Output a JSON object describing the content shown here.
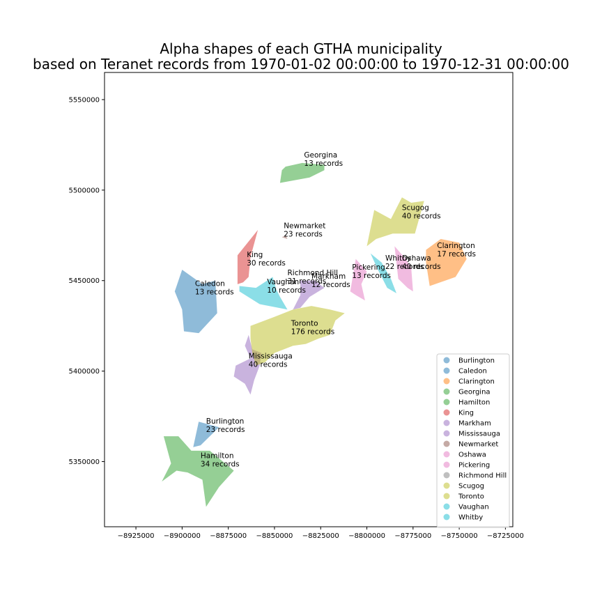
{
  "title_line1": "Alpha shapes of each GTHA municipality",
  "title_line2": "based on Teranet records from 1970-01-02 00:00:00 to 1970-12-31 00:00:00",
  "chart_data": {
    "type": "map",
    "xlim": [
      -8942000,
      -8721000
    ],
    "ylim": [
      5314000,
      5565000
    ],
    "x_ticks": [
      {
        "value": -8925000,
        "label": "−8925000"
      },
      {
        "value": -8900000,
        "label": "−8900000"
      },
      {
        "value": -8875000,
        "label": "−8875000"
      },
      {
        "value": -8850000,
        "label": "−8850000"
      },
      {
        "value": -8825000,
        "label": "−8825000"
      },
      {
        "value": -8800000,
        "label": "−8800000"
      },
      {
        "value": -8775000,
        "label": "−8775000"
      },
      {
        "value": -8750000,
        "label": "−8750000"
      },
      {
        "value": -8725000,
        "label": "−8725000"
      }
    ],
    "y_ticks": [
      {
        "value": 5350000,
        "label": "5350000"
      },
      {
        "value": 5400000,
        "label": "5400000"
      },
      {
        "value": 5450000,
        "label": "5450000"
      },
      {
        "value": 5500000,
        "label": "5500000"
      },
      {
        "value": 5550000,
        "label": "5550000"
      }
    ],
    "legend_position": "lower-right",
    "municipalities": [
      {
        "name": "Burlington",
        "color": "#1f77b4",
        "label_lines": [
          "Burlington",
          "23 records"
        ],
        "label_at": [
          -8887000,
          5371000
        ],
        "polygon": [
          [
            -8891000,
            5372000
          ],
          [
            -8880000,
            5369000
          ],
          [
            -8890000,
            5359000
          ],
          [
            -8894000,
            5358000
          ]
        ]
      },
      {
        "name": "Caledon",
        "color": "#1f77b4",
        "label_lines": [
          "Caledon",
          "13 records"
        ],
        "label_at": [
          -8893000,
          5447000
        ],
        "polygon": [
          [
            -8900000,
            5456000
          ],
          [
            -8889000,
            5448000
          ],
          [
            -8882000,
            5450000
          ],
          [
            -8881000,
            5432000
          ],
          [
            -8891000,
            5421000
          ],
          [
            -8899000,
            5422000
          ],
          [
            -8900000,
            5434000
          ],
          [
            -8904000,
            5444000
          ]
        ]
      },
      {
        "name": "Clarington",
        "color": "#ff7f0e",
        "label_lines": [
          "Clarington",
          "17 records"
        ],
        "label_at": [
          -8762000,
          5468000
        ],
        "polygon": [
          [
            -8768000,
            5467000
          ],
          [
            -8760000,
            5473000
          ],
          [
            -8750000,
            5471000
          ],
          [
            -8746000,
            5462000
          ],
          [
            -8752000,
            5452000
          ],
          [
            -8766000,
            5447000
          ],
          [
            -8768000,
            5460000
          ]
        ]
      },
      {
        "name": "Georgina",
        "color": "#2ca02c",
        "label_lines": [
          "Georgina",
          "13 records"
        ],
        "label_at": [
          -8834000,
          5518000
        ],
        "polygon": [
          [
            -8844000,
            5513000
          ],
          [
            -8835000,
            5515000
          ],
          [
            -8823000,
            5514000
          ],
          [
            -8823000,
            5511000
          ],
          [
            -8831000,
            5507000
          ],
          [
            -8847000,
            5504000
          ],
          [
            -8846000,
            5511000
          ]
        ]
      },
      {
        "name": "Hamilton",
        "color": "#2ca02c",
        "label_lines": [
          "Hamilton",
          "34 records"
        ],
        "label_at": [
          -8890000,
          5352000
        ],
        "polygon": [
          [
            -8910000,
            5364000
          ],
          [
            -8902000,
            5364000
          ],
          [
            -8895000,
            5356000
          ],
          [
            -8885000,
            5356000
          ],
          [
            -8872000,
            5345000
          ],
          [
            -8880000,
            5336000
          ],
          [
            -8887000,
            5325000
          ],
          [
            -8889000,
            5340000
          ],
          [
            -8897000,
            5344000
          ],
          [
            -8903000,
            5345000
          ],
          [
            -8911000,
            5339000
          ],
          [
            -8906000,
            5349000
          ]
        ]
      },
      {
        "name": "King",
        "color": "#d62728",
        "label_lines": [
          "King",
          "30 records"
        ],
        "label_at": [
          -8865000,
          5463000
        ],
        "polygon": [
          [
            -8870000,
            5464000
          ],
          [
            -8859000,
            5478000
          ],
          [
            -8863000,
            5463000
          ],
          [
            -8864000,
            5452000
          ],
          [
            -8867000,
            5449000
          ],
          [
            -8870000,
            5448000
          ]
        ]
      },
      {
        "name": "Markham",
        "color": "#9467bd",
        "label_lines": [
          "Markham",
          "12 records"
        ],
        "label_at": [
          -8830000,
          5451000
        ],
        "polygon": [
          [
            -8836000,
            5450000
          ],
          [
            -8828000,
            5450000
          ],
          [
            -8823000,
            5446000
          ],
          [
            -8831000,
            5441000
          ],
          [
            -8836000,
            5435000
          ],
          [
            -8840000,
            5434000
          ],
          [
            -8836000,
            5442000
          ]
        ]
      },
      {
        "name": "Mississauga",
        "color": "#9467bd",
        "label_lines": [
          "Mississauga",
          "40 records"
        ],
        "label_at": [
          -8864000,
          5407000
        ],
        "polygon": [
          [
            -8864000,
            5420000
          ],
          [
            -8862000,
            5412000
          ],
          [
            -8857000,
            5410000
          ],
          [
            -8858000,
            5403000
          ],
          [
            -8861000,
            5395000
          ],
          [
            -8863000,
            5387000
          ],
          [
            -8866000,
            5393000
          ],
          [
            -8872000,
            5397000
          ],
          [
            -8871000,
            5403000
          ],
          [
            -8863000,
            5407000
          ],
          [
            -8866000,
            5414000
          ]
        ]
      },
      {
        "name": "Newmarket",
        "color": "#8c564b",
        "label_lines": [
          "Newmarket",
          "23 records"
        ],
        "label_at": [
          -8845000,
          5479000
        ],
        "polygon": [
          [
            -8846000,
            5474000
          ],
          [
            -8844000,
            5475000
          ],
          [
            -8843000,
            5473000
          ]
        ]
      },
      {
        "name": "Oshawa",
        "color": "#e377c2",
        "label_lines": [
          "Oshawa",
          "40 records"
        ],
        "label_at": [
          -8781000,
          5461000
        ],
        "polygon": [
          [
            -8785000,
            5469000
          ],
          [
            -8779000,
            5462000
          ],
          [
            -8776000,
            5457000
          ],
          [
            -8775000,
            5444000
          ],
          [
            -8778000,
            5446000
          ],
          [
            -8783000,
            5451000
          ]
        ]
      },
      {
        "name": "Pickering",
        "color": "#e377c2",
        "label_lines": [
          "Pickering",
          "13 records"
        ],
        "label_at": [
          -8808000,
          5456000
        ],
        "polygon": [
          [
            -8806000,
            5462000
          ],
          [
            -8800000,
            5455000
          ],
          [
            -8803000,
            5448000
          ],
          [
            -8801000,
            5439000
          ],
          [
            -8806000,
            5442000
          ],
          [
            -8809000,
            5444000
          ]
        ]
      },
      {
        "name": "Richmond Hill",
        "color": "#7f7f7f",
        "label_lines": [
          "Richmond Hill",
          "31 records"
        ],
        "label_at": [
          -8843000,
          5453000
        ],
        "polygon": []
      },
      {
        "name": "Scugog",
        "color": "#bcbd22",
        "label_lines": [
          "Scugog",
          "40 records"
        ],
        "label_at": [
          -8781000,
          5489000
        ],
        "polygon": [
          [
            -8787000,
            5484000
          ],
          [
            -8781000,
            5496000
          ],
          [
            -8776000,
            5493000
          ],
          [
            -8769000,
            5494000
          ],
          [
            -8774000,
            5476000
          ],
          [
            -8786000,
            5476000
          ],
          [
            -8795000,
            5473000
          ],
          [
            -8800000,
            5469000
          ],
          [
            -8796000,
            5489000
          ]
        ]
      },
      {
        "name": "Toronto",
        "color": "#bcbd22",
        "label_lines": [
          "Toronto",
          "176 records"
        ],
        "label_at": [
          -8841000,
          5425000
        ],
        "polygon": [
          [
            -8863000,
            5425000
          ],
          [
            -8850000,
            5430000
          ],
          [
            -8840000,
            5434000
          ],
          [
            -8830000,
            5436000
          ],
          [
            -8820000,
            5434000
          ],
          [
            -8812000,
            5432000
          ],
          [
            -8817000,
            5428000
          ],
          [
            -8820000,
            5420000
          ],
          [
            -8826000,
            5418000
          ],
          [
            -8833000,
            5415000
          ],
          [
            -8840000,
            5414000
          ],
          [
            -8850000,
            5410000
          ],
          [
            -8855000,
            5405000
          ],
          [
            -8860000,
            5403000
          ],
          [
            -8862000,
            5410000
          ],
          [
            -8863000,
            5418000
          ]
        ]
      },
      {
        "name": "Vaughan",
        "color": "#17becf",
        "label_lines": [
          "Vaughan",
          "10 records"
        ],
        "label_at": [
          -8854000,
          5448000
        ],
        "polygon": [
          [
            -8869000,
            5447000
          ],
          [
            -8860000,
            5446000
          ],
          [
            -8851000,
            5452000
          ],
          [
            -8849000,
            5445000
          ],
          [
            -8847000,
            5441000
          ],
          [
            -8843000,
            5434000
          ],
          [
            -8858000,
            5437000
          ],
          [
            -8869000,
            5444000
          ]
        ]
      },
      {
        "name": "Whitby",
        "color": "#17becf",
        "label_lines": [
          "Whitby",
          "22 records"
        ],
        "label_at": [
          -8790000,
          5461000
        ],
        "polygon": [
          [
            -8798000,
            5465000
          ],
          [
            -8792000,
            5460000
          ],
          [
            -8787000,
            5451000
          ],
          [
            -8784000,
            5443000
          ],
          [
            -8789000,
            5446000
          ],
          [
            -8794000,
            5456000
          ]
        ]
      }
    ]
  }
}
